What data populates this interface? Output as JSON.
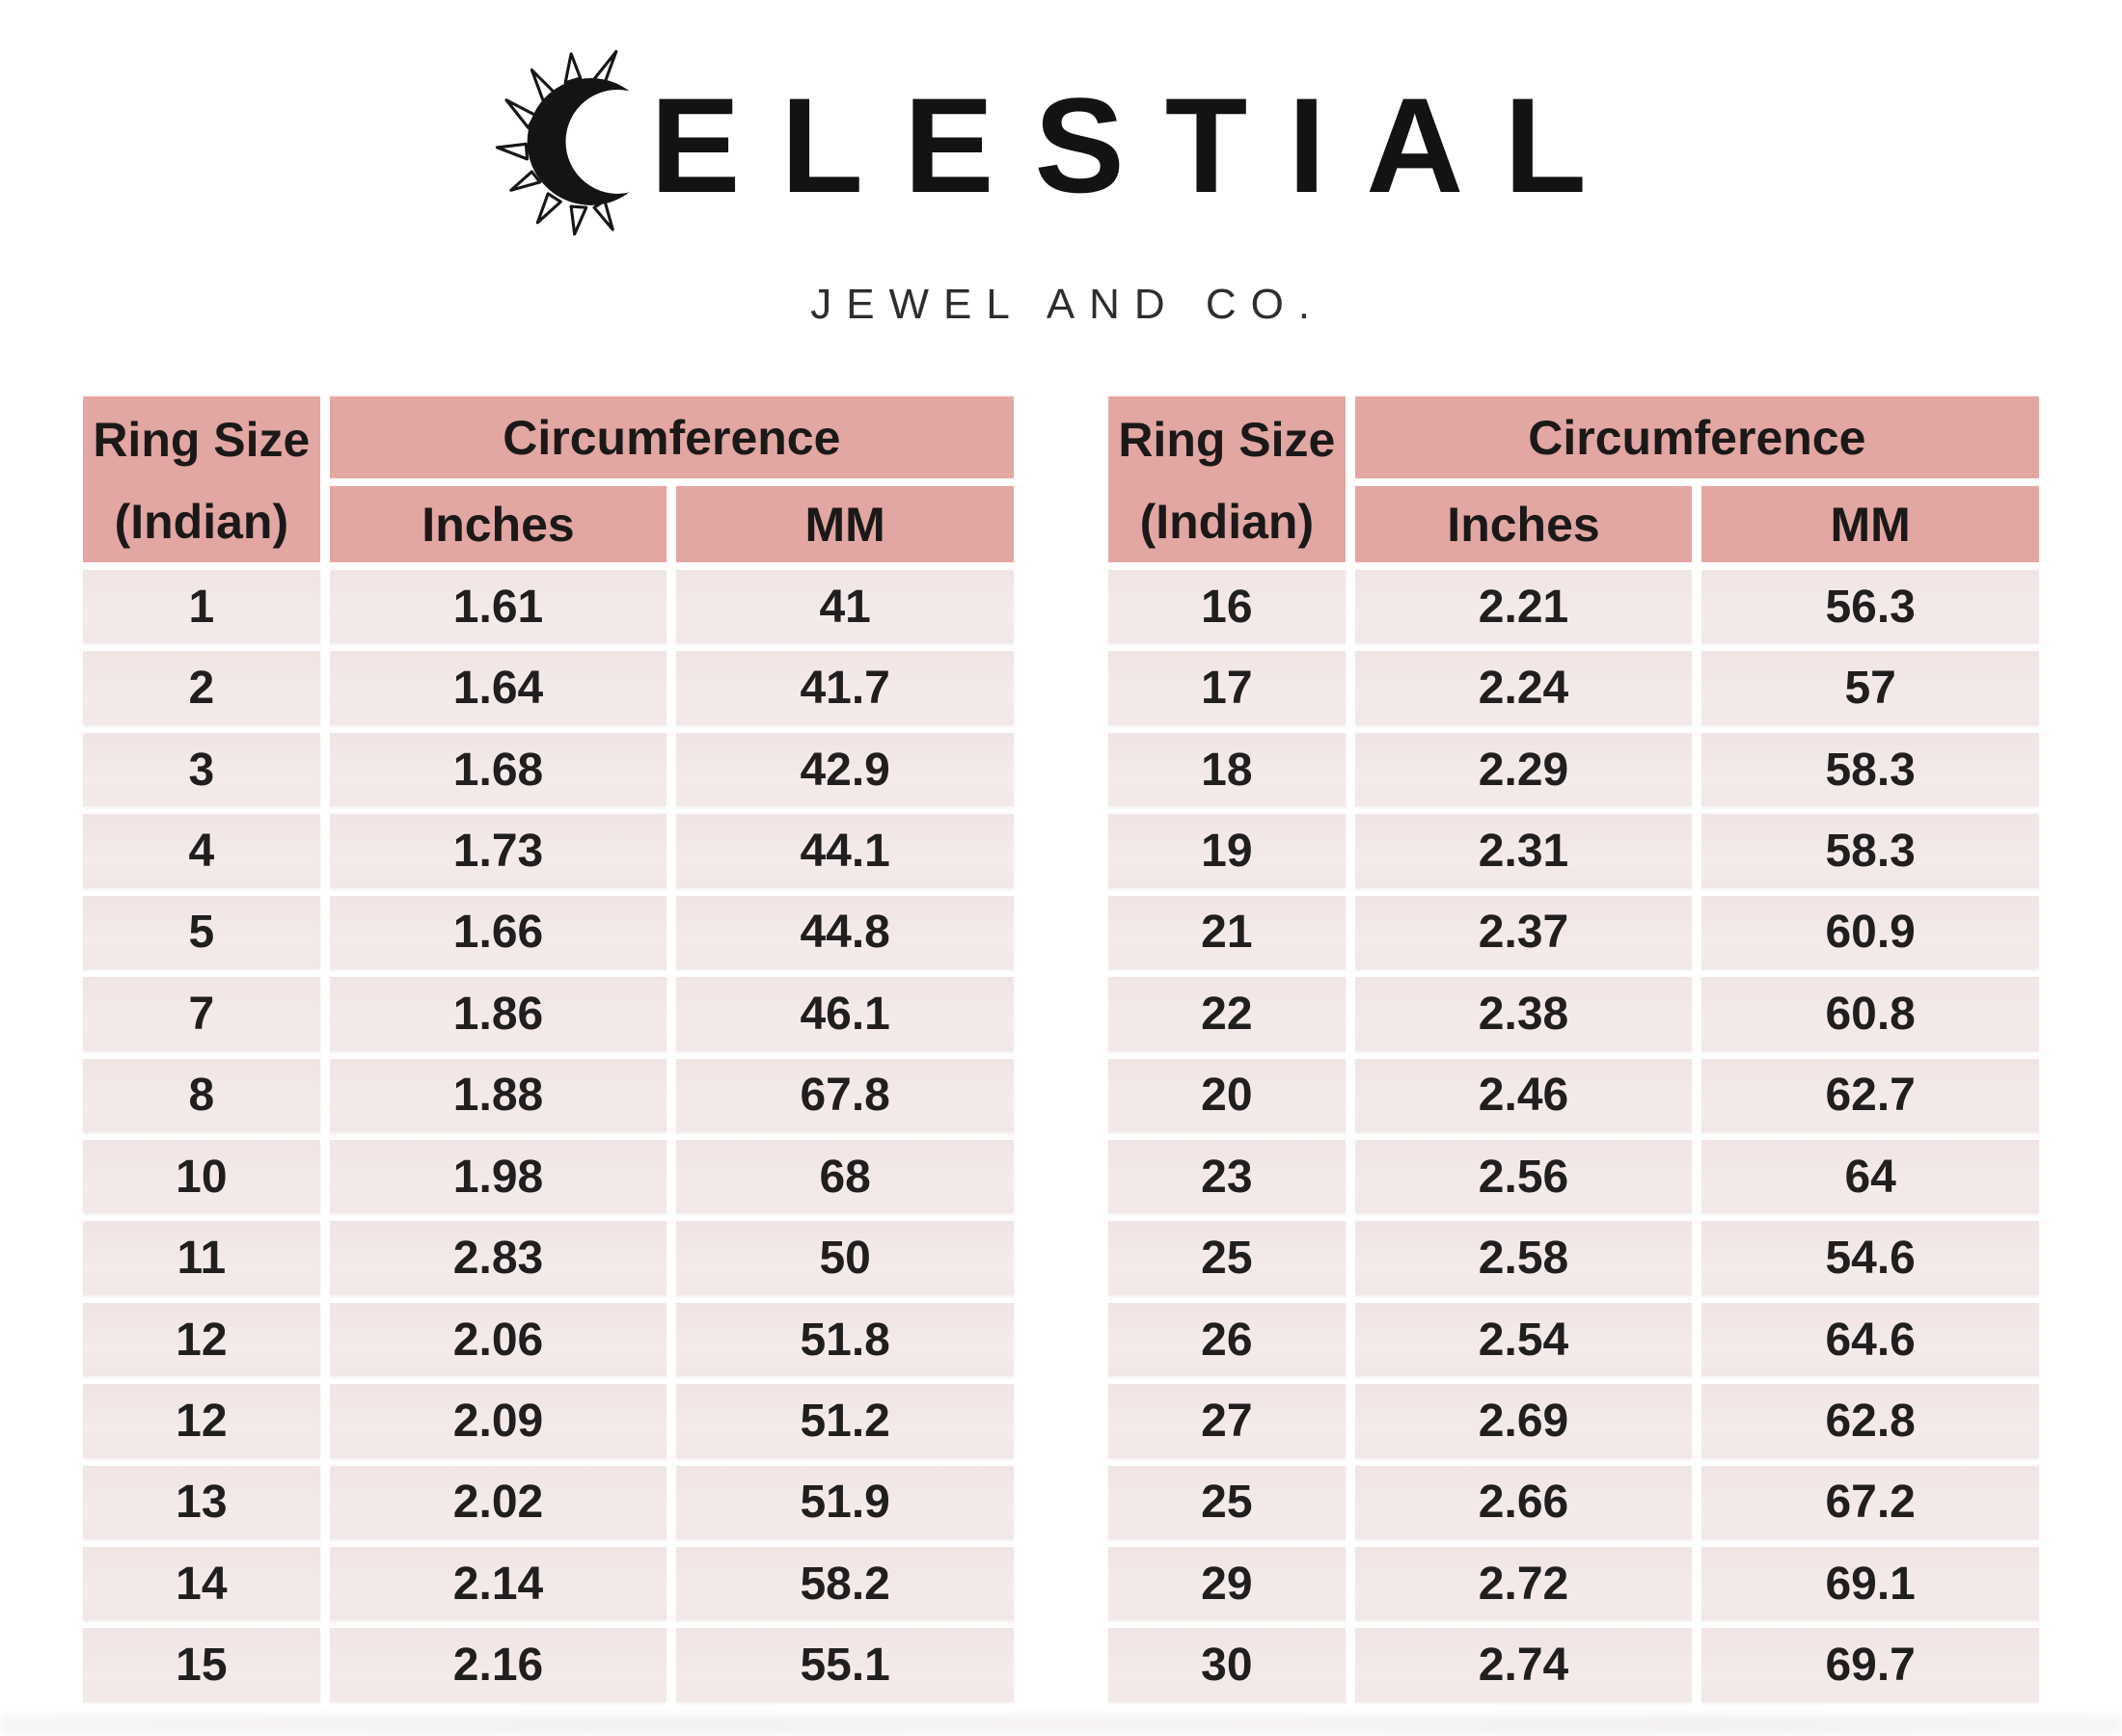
{
  "brand": {
    "name_rest": "ELESTIAL",
    "subtitle": "JEWEL AND CO.",
    "icon": "sun-crescent-icon"
  },
  "colors": {
    "header_bg": "#e2a6a3",
    "row_bg": "#f2e8e7",
    "text": "#1b1918",
    "page_bg": "#ffffff"
  },
  "tables": [
    {
      "headers": {
        "ring_size_line1": "Ring Size",
        "ring_size_line2": "(Indian)",
        "circumference": "Circumference",
        "inches": "Inches",
        "mm": "MM"
      },
      "rows": [
        {
          "size": "1",
          "inches": "1.61",
          "mm": "41"
        },
        {
          "size": "2",
          "inches": "1.64",
          "mm": "41.7"
        },
        {
          "size": "3",
          "inches": "1.68",
          "mm": "42.9"
        },
        {
          "size": "4",
          "inches": "1.73",
          "mm": "44.1"
        },
        {
          "size": "5",
          "inches": "1.66",
          "mm": "44.8"
        },
        {
          "size": "7",
          "inches": "1.86",
          "mm": "46.1"
        },
        {
          "size": "8",
          "inches": "1.88",
          "mm": "67.8"
        },
        {
          "size": "10",
          "inches": "1.98",
          "mm": "68"
        },
        {
          "size": "11",
          "inches": "2.83",
          "mm": "50"
        },
        {
          "size": "12",
          "inches": "2.06",
          "mm": "51.8"
        },
        {
          "size": "12",
          "inches": "2.09",
          "mm": "51.2"
        },
        {
          "size": "13",
          "inches": "2.02",
          "mm": "51.9"
        },
        {
          "size": "14",
          "inches": "2.14",
          "mm": "58.2"
        },
        {
          "size": "15",
          "inches": "2.16",
          "mm": "55.1"
        }
      ]
    },
    {
      "headers": {
        "ring_size_line1": "Ring Size",
        "ring_size_line2": "(Indian)",
        "circumference": "Circumference",
        "inches": "Inches",
        "mm": "MM"
      },
      "rows": [
        {
          "size": "16",
          "inches": "2.21",
          "mm": "56.3"
        },
        {
          "size": "17",
          "inches": "2.24",
          "mm": "57"
        },
        {
          "size": "18",
          "inches": "2.29",
          "mm": "58.3"
        },
        {
          "size": "19",
          "inches": "2.31",
          "mm": "58.3"
        },
        {
          "size": "21",
          "inches": "2.37",
          "mm": "60.9"
        },
        {
          "size": "22",
          "inches": "2.38",
          "mm": "60.8"
        },
        {
          "size": "20",
          "inches": "2.46",
          "mm": "62.7"
        },
        {
          "size": "23",
          "inches": "2.56",
          "mm": "64"
        },
        {
          "size": "25",
          "inches": "2.58",
          "mm": "54.6"
        },
        {
          "size": "26",
          "inches": "2.54",
          "mm": "64.6"
        },
        {
          "size": "27",
          "inches": "2.69",
          "mm": "62.8"
        },
        {
          "size": "25",
          "inches": "2.66",
          "mm": "67.2"
        },
        {
          "size": "29",
          "inches": "2.72",
          "mm": "69.1"
        },
        {
          "size": "30",
          "inches": "2.74",
          "mm": "69.7"
        }
      ]
    }
  ]
}
